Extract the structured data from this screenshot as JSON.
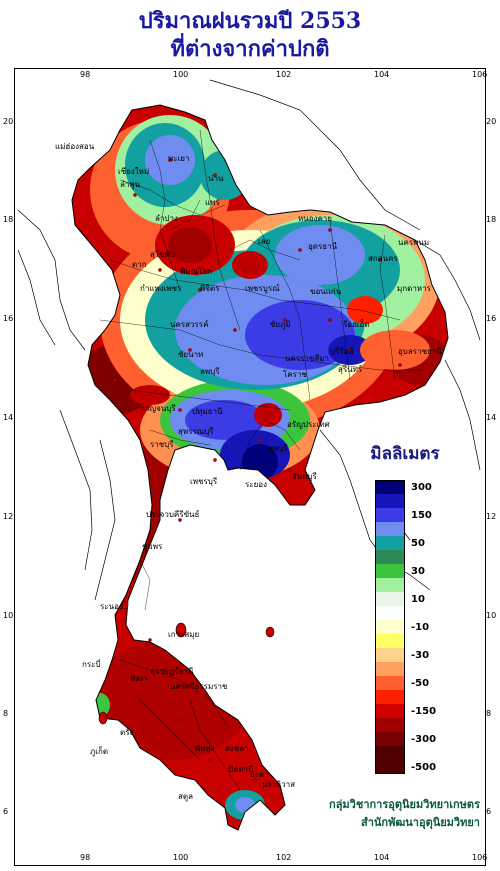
{
  "title_line1": "ปริมาณฝนรวมปี  2553",
  "title_line2": "ที่ต่างจากค่าปกติ",
  "legend": {
    "title": "มิลลิเมตร",
    "bins": [
      {
        "label": "300",
        "color": "#00007a"
      },
      {
        "label": "",
        "color": "#1616b8"
      },
      {
        "label": "150",
        "color": "#3c3ce6"
      },
      {
        "label": "",
        "color": "#6f8cf0"
      },
      {
        "label": "50",
        "color": "#12a0a0"
      },
      {
        "label": "",
        "color": "#2e8b57"
      },
      {
        "label": "30",
        "color": "#3cc43c"
      },
      {
        "label": "",
        "color": "#a0f0a0"
      },
      {
        "label": "10",
        "color": "#e6f5e6"
      },
      {
        "label": "",
        "color": "#ffffff"
      },
      {
        "label": "-10",
        "color": "#ffffcc"
      },
      {
        "label": "",
        "color": "#ffff66"
      },
      {
        "label": "-30",
        "color": "#ffd28c"
      },
      {
        "label": "",
        "color": "#ffa060"
      },
      {
        "label": "-50",
        "color": "#ff6030"
      },
      {
        "label": "",
        "color": "#ff2000"
      },
      {
        "label": "-150",
        "color": "#d00000"
      },
      {
        "label": "",
        "color": "#a00000"
      },
      {
        "label": "-300",
        "color": "#780000"
      },
      {
        "label": "",
        "color": "#500000"
      },
      {
        "label": "-500",
        "color": "#500000"
      }
    ]
  },
  "axes": {
    "lon_ticks": [
      "98",
      "100",
      "102",
      "104",
      "106"
    ],
    "lat_ticks": [
      "20",
      "18",
      "16",
      "14",
      "12",
      "10",
      "8",
      "6"
    ]
  },
  "places": [
    "แม่ฮ่องสอน",
    "เชียงใหม่",
    "ลำพูน",
    "พะเยา",
    "น่าน",
    "แพร่",
    "ลำปาง",
    "ตาก",
    "สุโขทัย",
    "พิษณุโลก",
    "กำแพงเพชร",
    "พิจิตร",
    "เพชรบูรณ์",
    "นครสวรรค์",
    "ชัยนาท",
    "ลพบุรี",
    "สุพรรณบุรี",
    "กาญจนบุรี",
    "ปทุมธานี",
    "ราชบุรี",
    "เพชรบุรี",
    "ชลบุรี",
    "ระยอง",
    "จันทบุรี",
    "หนองคาย",
    "อุดรธานี",
    "เลย",
    "ขอนแก่น",
    "สกลนคร",
    "นครพนม",
    "มุกดาหาร",
    "ร้อยเอ็ด",
    "อุบลราชธานี",
    "ชัยภูมิ",
    "นครราชสีมา",
    "บุรีรัมย์",
    "สุรินทร์",
    "โคราช",
    "ประจวบคีรีขันธ์",
    "ชุมพร",
    "ระนอง",
    "สุราษฎร์ธานี",
    "เกาะสมุย",
    "ภูเก็ต",
    "พังงา",
    "กระบี่",
    "นครศรีธรรมราช",
    "ตรัง",
    "พัทลุง",
    "สงขลา",
    "สตูล",
    "ปัตตานี",
    "ยะลา",
    "นราธิวาส",
    "อรัญประเทศ"
  ],
  "credit_line1": "กลุ่มวิชาการอุตุนิยมวิทยาเกษตร",
  "credit_line2": "สำนักพัฒนาอุตุนิยมวิทยา"
}
